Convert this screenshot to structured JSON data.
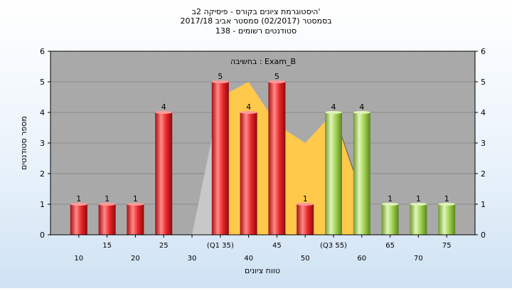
{
  "chart_data": {
    "type": "bar",
    "title_lines": [
      "היסטוגרמת ציונים בקורס - פיסיקה 2ב'",
      "בסמסטר  (02/2017)  סמסטר אביב 2017/18",
      "סטודנטים רשומים - 138"
    ],
    "ylabel": "מספר סטודנטים",
    "xlabel": "טווח ציונים",
    "annotation": "בחשיבה : Exam_B",
    "ylim": [
      0,
      6
    ],
    "yticks": [
      0,
      1,
      2,
      3,
      4,
      5,
      6
    ],
    "grid": true,
    "categories": [
      "10",
      "15",
      "20",
      "25",
      "30",
      "(Q1 35)",
      "40",
      "45",
      "50",
      "(Q3 55)",
      "60",
      "65",
      "70",
      "75"
    ],
    "values": [
      1,
      1,
      1,
      4,
      0,
      5,
      4,
      5,
      1,
      4,
      4,
      1,
      1,
      1
    ],
    "groups": [
      "red",
      "red",
      "red",
      "red",
      "red",
      "red",
      "red",
      "red",
      "red",
      "green",
      "green",
      "green",
      "green",
      "green"
    ],
    "background_series": [
      0,
      0,
      0,
      0,
      0,
      4.5,
      5,
      3.6,
      3,
      4,
      1.3,
      0,
      0,
      0
    ],
    "colors": {
      "red": "#e8262a",
      "red_light": "#ff9a98",
      "red_dark": "#9c0d0f",
      "green": "#9fd04f",
      "green_light": "#dff3b8",
      "green_dark": "#5f8a22",
      "area_yellow": "#ffc94c",
      "area_gray": "#c8c8c8",
      "plot_bg": "#a9a9a9",
      "grid": "#8a8a8a"
    }
  }
}
